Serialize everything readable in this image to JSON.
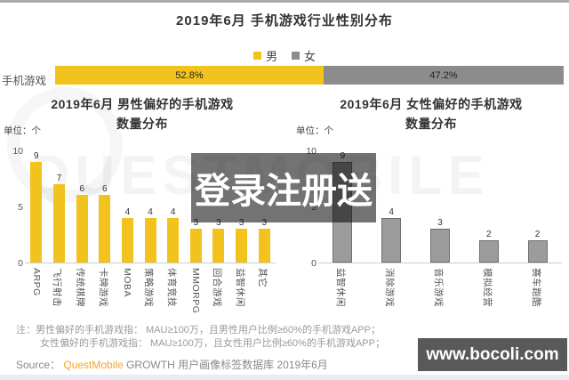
{
  "page": {
    "watermark_band_text": "登录注册送",
    "watermark_brand": "QUESTMOBILE",
    "site_banner": "www.bocoli.com"
  },
  "header": {
    "title": "2019年6月 手机游戏行业性别分布"
  },
  "legend": {
    "male_label": "男",
    "female_label": "女"
  },
  "notes": {
    "label": "注：",
    "line1": "男性偏好的手机游戏指： MAU≥100万，且男性用户比例≥60%的手机游戏APP；",
    "line2": "女性偏好的手机游戏指： MAU≥100万，且女性用户比例≥60%的手机游戏APP；"
  },
  "source": {
    "prefix": "Source：",
    "brand": "QuestMobile",
    "suffix": " GROWTH 用户画像标签数据库 2019年6月"
  },
  "chart_data": [
    {
      "type": "bar",
      "orientation": "horizontal",
      "stacked": true,
      "title": "2019年6月 手机游戏行业性别分布",
      "categories": [
        "手机游戏"
      ],
      "series": [
        {
          "name": "男",
          "values": [
            52.8
          ],
          "label": "52.8%",
          "color": "#F2C31D"
        },
        {
          "name": "女",
          "values": [
            47.2
          ],
          "label": "47.2%",
          "color": "#8C8C8C"
        }
      ],
      "unit": "%",
      "legend_position": "top"
    },
    {
      "type": "bar",
      "title": "2019年6月 男性偏好的手机游戏",
      "subtitle": "数量分布",
      "unit": "单位：个",
      "categories": [
        "ARPG",
        "飞行射击",
        "传统棋牌",
        "卡牌游戏",
        "MOBA",
        "策略游戏",
        "体育竞技",
        "MMORPG",
        "回合游戏",
        "益智休闲",
        "其它"
      ],
      "values": [
        9,
        7,
        6,
        6,
        4,
        4,
        4,
        3,
        3,
        3,
        3
      ],
      "ylim": [
        0,
        10
      ],
      "yticks": [
        0,
        5,
        10
      ],
      "bar_color": "#F2C31D",
      "grid": false
    },
    {
      "type": "bar",
      "title": "2019年6月 女性偏好的手机游戏",
      "subtitle": "数量分布",
      "unit": "单位：个",
      "categories": [
        "益智休闲",
        "消除游戏",
        "音乐游戏",
        "模拟经营",
        "赛车跑酷"
      ],
      "values": [
        9,
        4,
        3,
        2,
        2
      ],
      "ylim": [
        0,
        10
      ],
      "yticks": [
        0,
        5,
        10
      ],
      "bar_color": "#9C9C9C",
      "bar_border_color": "#6F6F6F",
      "grid": false
    }
  ]
}
